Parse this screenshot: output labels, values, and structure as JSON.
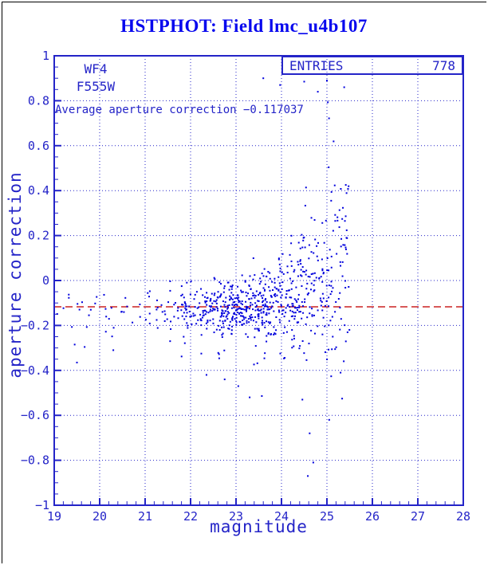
{
  "window": {
    "title": "HSTPHOT: Field lmc_u4b107"
  },
  "colors": {
    "title": "#0707ee",
    "axis": "#2424c8",
    "points": "#0000dd",
    "average_line": "#cc2222",
    "background": "#ffffff",
    "window_border": "#000000"
  },
  "chart_data": {
    "type": "scatter",
    "title": "HSTPHOT: Field lmc_u4b107",
    "xlabel": "magnitude",
    "ylabel": "aperture correction",
    "xlim": [
      19,
      28
    ],
    "ylim": [
      -1,
      1
    ],
    "x_major_step": 1,
    "x_minor_step": 0.2,
    "y_major_step": 0.2,
    "y_minor_step": 0.05,
    "grid": true,
    "grid_style": "dotted",
    "x_ticks": [
      "19",
      "20",
      "21",
      "22",
      "23",
      "24",
      "25",
      "26",
      "27",
      "28"
    ],
    "y_ticks": [
      "1",
      "0.8",
      "0.6",
      "0.4",
      "0.2",
      "0",
      "−0.2",
      "−0.4",
      "−0.6",
      "−0.8",
      "−1"
    ],
    "y_tick_values": [
      1,
      0.8,
      0.6,
      0.4,
      0.2,
      0,
      -0.2,
      -0.4,
      -0.6,
      -0.8,
      -1
    ],
    "legend_box": {
      "label": "ENTRIES",
      "value": "778"
    },
    "annotations": {
      "detector": "WF4",
      "filter": "F555W",
      "average_text": "Average aperture correction −0.117037"
    },
    "average_line": {
      "value": -0.117037,
      "style": "dashed"
    },
    "n_points": 778,
    "point_seed": 987654321,
    "clusters": [
      {
        "x0": 19.0,
        "x1": 20.0,
        "n": 14,
        "mean": -0.13,
        "sd": 0.05,
        "tailFrac": 0.05,
        "tailSd": 0.1
      },
      {
        "x0": 20.0,
        "x1": 21.0,
        "n": 16,
        "mean": -0.13,
        "sd": 0.04,
        "tailFrac": 0.05,
        "tailSd": 0.1
      },
      {
        "x0": 21.0,
        "x1": 21.8,
        "n": 30,
        "mean": -0.125,
        "sd": 0.04,
        "tailFrac": 0.06,
        "tailSd": 0.1
      },
      {
        "x0": 21.8,
        "x1": 22.5,
        "n": 90,
        "mean": -0.125,
        "sd": 0.05,
        "tailFrac": 0.08,
        "tailSd": 0.12
      },
      {
        "x0": 22.5,
        "x1": 23.2,
        "n": 160,
        "mean": -0.115,
        "sd": 0.055,
        "tailFrac": 0.1,
        "tailSd": 0.13
      },
      {
        "x0": 23.2,
        "x1": 23.8,
        "n": 150,
        "mean": -0.1,
        "sd": 0.075,
        "tailFrac": 0.12,
        "tailSd": 0.15
      },
      {
        "x0": 23.8,
        "x1": 24.4,
        "n": 120,
        "mean": -0.07,
        "sd": 0.11,
        "tailFrac": 0.12,
        "tailSd": 0.15
      },
      {
        "x0": 24.4,
        "x1": 25.0,
        "n": 100,
        "mean": -0.03,
        "sd": 0.16,
        "tailFrac": 0.1,
        "tailSd": 0.15
      },
      {
        "x0": 25.0,
        "x1": 25.5,
        "n": 78,
        "mean": 0.06,
        "sd": 0.27,
        "tailFrac": 0.08,
        "tailSd": 0.12
      }
    ],
    "outliers": [
      [
        19.45,
        -0.285
      ],
      [
        19.5,
        -0.365
      ],
      [
        20.3,
        -0.31
      ],
      [
        21.55,
        -0.27
      ],
      [
        22.35,
        -0.42
      ],
      [
        22.75,
        -0.44
      ],
      [
        23.05,
        -0.47
      ],
      [
        23.3,
        -0.52
      ],
      [
        23.6,
        0.9
      ],
      [
        23.97,
        0.87
      ],
      [
        24.5,
        0.885
      ],
      [
        25.0,
        0.89
      ],
      [
        25.38,
        0.86
      ],
      [
        24.8,
        0.84
      ],
      [
        24.46,
        -0.53
      ],
      [
        24.62,
        -0.68
      ],
      [
        24.7,
        -0.81
      ],
      [
        24.58,
        -0.87
      ],
      [
        25.05,
        -0.62
      ],
      [
        25.3,
        -0.41
      ]
    ]
  }
}
